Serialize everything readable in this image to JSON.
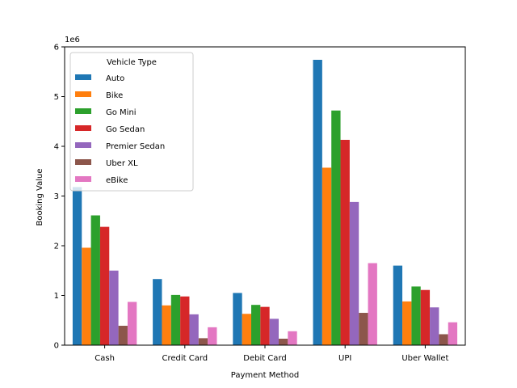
{
  "chart_data": {
    "type": "bar",
    "xlabel": "Payment Method",
    "ylabel": "Booking Value",
    "y_offset_label": "1e6",
    "ylim": [
      0,
      6000000
    ],
    "yticks": [
      0,
      1000000,
      2000000,
      3000000,
      4000000,
      5000000,
      6000000
    ],
    "ytick_labels": [
      "0",
      "1",
      "2",
      "3",
      "4",
      "5",
      "6"
    ],
    "categories": [
      "Cash",
      "Credit Card",
      "Debit Card",
      "UPI",
      "Uber Wallet"
    ],
    "legend": {
      "title": "Vehicle Type",
      "placement": "upper-left"
    },
    "grid": false,
    "series": [
      {
        "name": "Auto",
        "color": "#1f77b4",
        "values": [
          3180000,
          1330000,
          1050000,
          5740000,
          1600000
        ]
      },
      {
        "name": "Bike",
        "color": "#ff7f0e",
        "values": [
          1960000,
          800000,
          630000,
          3570000,
          880000
        ]
      },
      {
        "name": "Go Mini",
        "color": "#2ca02c",
        "values": [
          2610000,
          1010000,
          810000,
          4720000,
          1180000
        ]
      },
      {
        "name": "Go Sedan",
        "color": "#d62728",
        "values": [
          2380000,
          980000,
          770000,
          4130000,
          1110000
        ]
      },
      {
        "name": "Premier Sedan",
        "color": "#9467bd",
        "values": [
          1500000,
          620000,
          530000,
          2880000,
          760000
        ]
      },
      {
        "name": "Uber XL",
        "color": "#8c564b",
        "values": [
          390000,
          140000,
          130000,
          650000,
          220000
        ]
      },
      {
        "name": "eBike",
        "color": "#e377c2",
        "values": [
          870000,
          360000,
          280000,
          1650000,
          460000
        ]
      }
    ]
  }
}
